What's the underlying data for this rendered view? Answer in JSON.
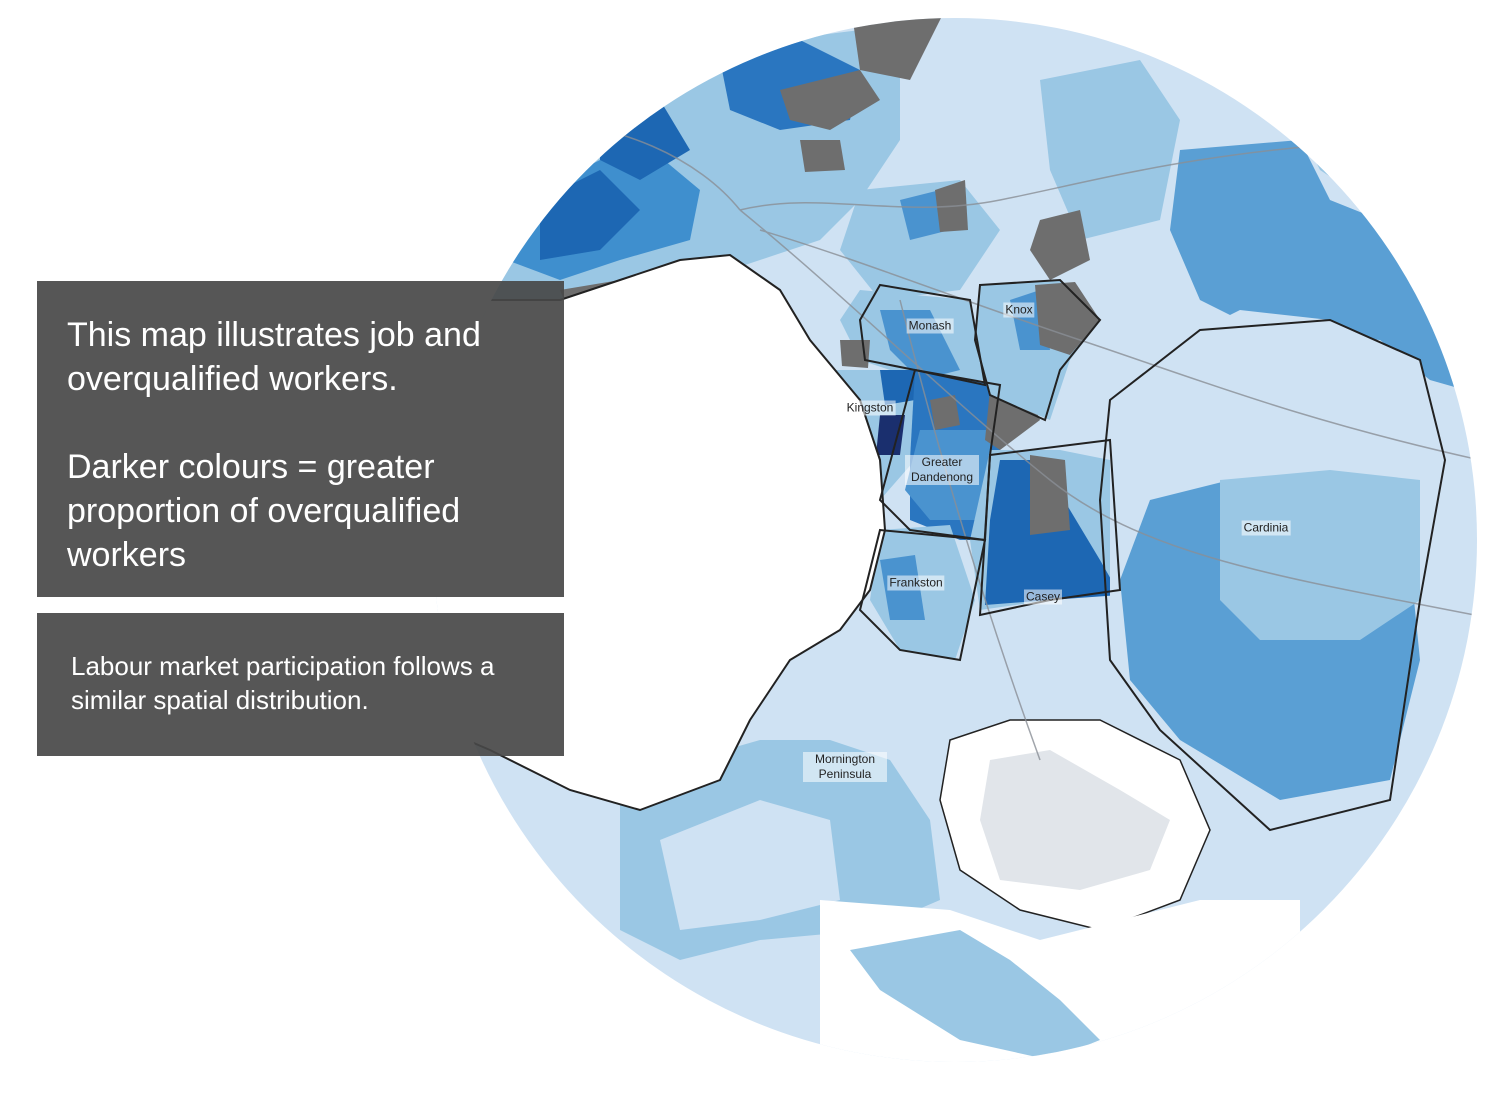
{
  "panel": {
    "heading": "This map illustrates job and overqualified workers.",
    "legend_note": "Darker colours = greater proportion of overqualified workers",
    "footnote": "Labour market participation follows a similar spatial distribution."
  },
  "map": {
    "labels": [
      "Monash",
      "Knox",
      "Kingston",
      "Greater Dandenong",
      "Frankston",
      "Casey",
      "Cardinia",
      "Mornington Peninsula"
    ]
  }
}
